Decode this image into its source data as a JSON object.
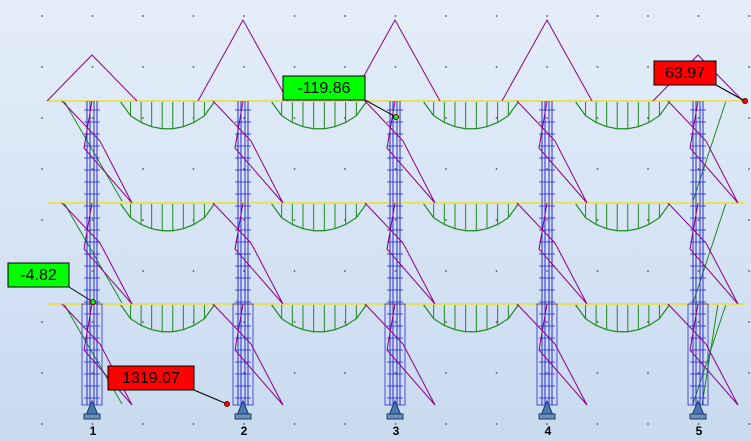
{
  "annotations": [
    {
      "text": "-119.86",
      "kind": "green"
    },
    {
      "text": "63.97",
      "kind": "red"
    },
    {
      "text": "-4.82",
      "kind": "green"
    },
    {
      "text": "1319.07",
      "kind": "red"
    }
  ],
  "axes": [
    "1",
    "2",
    "3",
    "4",
    "5"
  ]
}
